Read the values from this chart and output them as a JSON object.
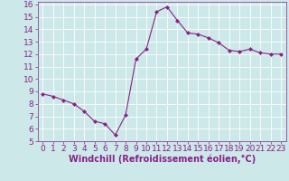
{
  "x": [
    0,
    1,
    2,
    3,
    4,
    5,
    6,
    7,
    8,
    9,
    10,
    11,
    12,
    13,
    14,
    15,
    16,
    17,
    18,
    19,
    20,
    21,
    22,
    23
  ],
  "y": [
    8.8,
    8.6,
    8.3,
    8.0,
    7.4,
    6.6,
    6.4,
    5.5,
    7.1,
    11.6,
    12.4,
    15.4,
    15.8,
    14.7,
    13.7,
    13.6,
    13.3,
    12.9,
    12.3,
    12.2,
    12.4,
    12.1,
    12.0,
    12.0
  ],
  "xlabel": "Windchill (Refroidissement éolien,°C)",
  "ylim": [
    5,
    16
  ],
  "xlim": [
    -0.5,
    23.5
  ],
  "yticks": [
    5,
    6,
    7,
    8,
    9,
    10,
    11,
    12,
    13,
    14,
    15,
    16
  ],
  "xticks": [
    0,
    1,
    2,
    3,
    4,
    5,
    6,
    7,
    8,
    9,
    10,
    11,
    12,
    13,
    14,
    15,
    16,
    17,
    18,
    19,
    20,
    21,
    22,
    23
  ],
  "line_color": "#882288",
  "marker": "D",
  "marker_size": 2.0,
  "bg_color": "#cce8e8",
  "grid_color": "#ffffff",
  "label_color": "#882288",
  "font_size": 6.5,
  "xlabel_font_size": 7.0
}
